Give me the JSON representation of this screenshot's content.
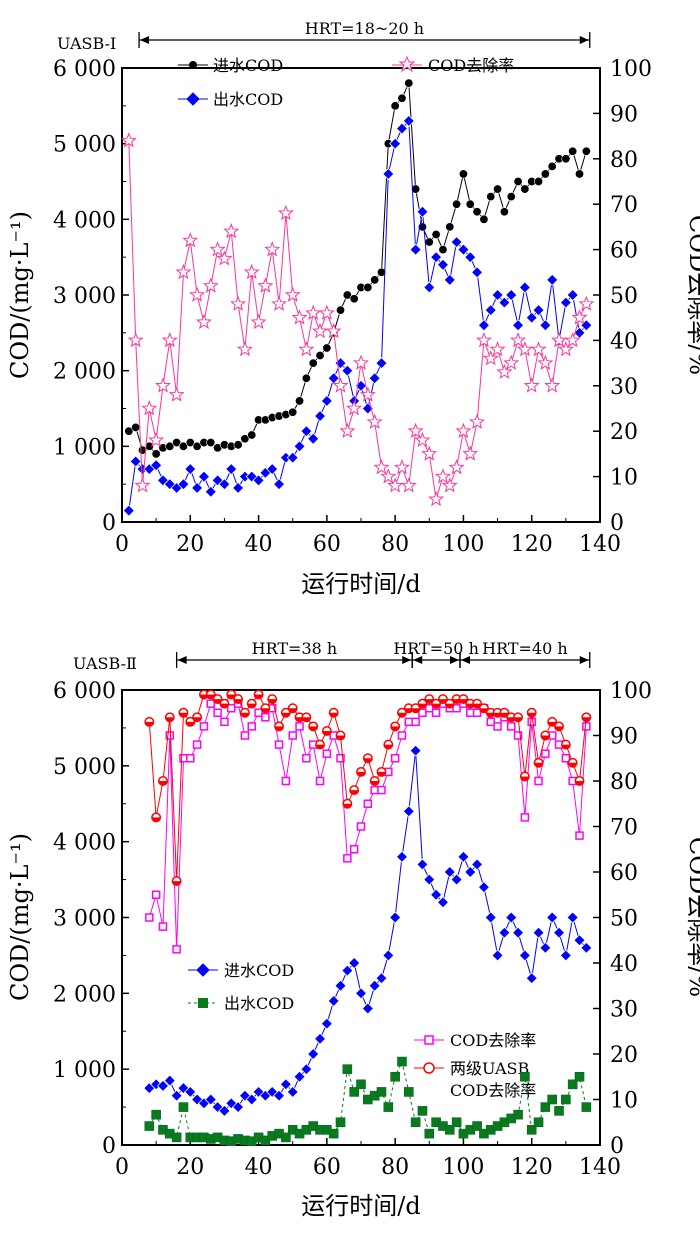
{
  "chart_data": [
    {
      "type": "line",
      "reactor_label": "UASB-Ⅰ",
      "hrt_segments": [
        {
          "label": "HRT=18~20 h",
          "x_start": 5,
          "x_end": 137
        }
      ],
      "xlabel": "运行时间/d",
      "ylabel_left": "COD/(mg·L⁻¹)",
      "ylabel_right": "COD去除率/%",
      "xlim": [
        0,
        140
      ],
      "ylim_left": [
        0,
        6000
      ],
      "ylim_right": [
        0,
        100
      ],
      "x_ticks": [
        "0",
        "20",
        "40",
        "60",
        "80",
        "100",
        "120",
        "140"
      ],
      "y_left_ticks": [
        "0",
        "1 000",
        "2 000",
        "3 000",
        "4 000",
        "5 000",
        "6 000"
      ],
      "y_right_ticks": [
        "0",
        "10",
        "20",
        "30",
        "40",
        "50",
        "60",
        "70",
        "80",
        "90",
        "100"
      ],
      "legend": [
        "进水COD",
        "出水COD",
        "COD去除率"
      ],
      "series": [
        {
          "name": "进水COD",
          "axis": "left",
          "color": "#000000",
          "marker": "circle",
          "x": [
            2,
            4,
            6,
            8,
            10,
            12,
            14,
            16,
            18,
            20,
            22,
            24,
            26,
            28,
            30,
            32,
            34,
            36,
            38,
            40,
            42,
            44,
            46,
            48,
            50,
            52,
            54,
            56,
            58,
            60,
            62,
            64,
            66,
            68,
            70,
            72,
            74,
            76,
            78,
            80,
            82,
            84,
            86,
            88,
            90,
            92,
            94,
            96,
            98,
            100,
            102,
            104,
            106,
            108,
            110,
            112,
            114,
            116,
            118,
            120,
            122,
            124,
            126,
            128,
            130,
            132,
            134,
            136
          ],
          "values": [
            1200,
            1250,
            950,
            1000,
            900,
            980,
            1000,
            1050,
            1000,
            1050,
            1000,
            1050,
            1050,
            980,
            1020,
            1000,
            1020,
            1100,
            1150,
            1350,
            1350,
            1380,
            1400,
            1420,
            1450,
            1600,
            1900,
            2100,
            2200,
            2300,
            2500,
            2800,
            3000,
            2950,
            3100,
            3100,
            3200,
            3300,
            5000,
            5500,
            5600,
            5800,
            4400,
            3900,
            3700,
            3800,
            3600,
            3900,
            4200,
            4600,
            4200,
            4100,
            4000,
            4300,
            4400,
            4100,
            4300,
            4500,
            4400,
            4500,
            4500,
            4600,
            4700,
            4800,
            4800,
            4900,
            4600,
            4900
          ]
        },
        {
          "name": "出水COD",
          "axis": "left",
          "color": "#0000FF",
          "marker": "diamond",
          "x": [
            2,
            4,
            6,
            8,
            10,
            12,
            14,
            16,
            18,
            20,
            22,
            24,
            26,
            28,
            30,
            32,
            34,
            36,
            38,
            40,
            42,
            44,
            46,
            48,
            50,
            52,
            54,
            56,
            58,
            60,
            62,
            64,
            66,
            68,
            70,
            72,
            74,
            76,
            78,
            80,
            82,
            84,
            86,
            88,
            90,
            92,
            94,
            96,
            98,
            100,
            102,
            104,
            106,
            108,
            110,
            112,
            114,
            116,
            118,
            120,
            122,
            124,
            126,
            128,
            130,
            132,
            134,
            136
          ],
          "values": [
            150,
            800,
            700,
            700,
            750,
            550,
            500,
            450,
            500,
            700,
            450,
            600,
            400,
            550,
            500,
            700,
            450,
            600,
            600,
            550,
            650,
            700,
            500,
            850,
            850,
            1000,
            1200,
            1100,
            1400,
            1600,
            1900,
            2100,
            2000,
            1600,
            1800,
            1500,
            1900,
            2100,
            4600,
            5000,
            5200,
            5300,
            3600,
            4100,
            3100,
            3500,
            3400,
            3200,
            3700,
            3600,
            3500,
            3300,
            2600,
            2800,
            3000,
            2900,
            3000,
            2600,
            3100,
            2700,
            2800,
            2600,
            3200,
            2400,
            2900,
            3000,
            2500,
            2600
          ]
        },
        {
          "name": "COD去除率",
          "axis": "right",
          "color": "#FF3399",
          "marker": "star",
          "x": [
            2,
            4,
            6,
            8,
            10,
            12,
            14,
            16,
            18,
            20,
            22,
            24,
            26,
            28,
            30,
            32,
            34,
            36,
            38,
            40,
            42,
            44,
            46,
            48,
            50,
            52,
            54,
            56,
            58,
            60,
            62,
            64,
            66,
            68,
            70,
            72,
            74,
            76,
            78,
            80,
            82,
            84,
            86,
            88,
            90,
            92,
            94,
            96,
            98,
            100,
            102,
            104,
            106,
            108,
            110,
            112,
            114,
            116,
            118,
            120,
            122,
            124,
            126,
            128,
            130,
            132,
            134,
            136
          ],
          "values": [
            84,
            40,
            8,
            25,
            18,
            30,
            40,
            28,
            55,
            62,
            50,
            44,
            52,
            60,
            58,
            64,
            48,
            38,
            55,
            44,
            52,
            60,
            48,
            68,
            50,
            45,
            38,
            46,
            42,
            46,
            42,
            30,
            20,
            25,
            35,
            28,
            22,
            12,
            10,
            8,
            12,
            8,
            20,
            18,
            15,
            5,
            10,
            8,
            12,
            20,
            15,
            22,
            40,
            36,
            38,
            33,
            35,
            40,
            38,
            30,
            38,
            35,
            30,
            40,
            38,
            40,
            45,
            48
          ]
        }
      ]
    },
    {
      "type": "line",
      "reactor_label": "UASB-Ⅱ",
      "hrt_segments": [
        {
          "label": "HRT=38 h",
          "x_start": 16,
          "x_end": 85
        },
        {
          "label": "HRT=50 h",
          "x_start": 85,
          "x_end": 99
        },
        {
          "label": "HRT=40 h",
          "x_start": 99,
          "x_end": 137
        }
      ],
      "xlabel": "运行时间/d",
      "ylabel_left": "COD/(mg·L⁻¹)",
      "ylabel_right": "COD去除率/%",
      "xlim": [
        0,
        140
      ],
      "ylim_left": [
        0,
        6000
      ],
      "ylim_right": [
        0,
        100
      ],
      "x_ticks": [
        "0",
        "20",
        "40",
        "60",
        "80",
        "100",
        "120",
        "140"
      ],
      "y_left_ticks": [
        "0",
        "1 000",
        "2 000",
        "3 000",
        "4 000",
        "5 000",
        "6 000"
      ],
      "y_right_ticks": [
        "0",
        "10",
        "20",
        "30",
        "40",
        "50",
        "60",
        "70",
        "80",
        "90",
        "100"
      ],
      "legend": [
        "进水COD",
        "出水COD",
        "COD去除率",
        "两级UASB COD去除率"
      ],
      "series": [
        {
          "name": "进水COD",
          "axis": "left",
          "color": "#0000FF",
          "marker": "diamond",
          "x": [
            8,
            10,
            12,
            14,
            16,
            18,
            20,
            22,
            24,
            26,
            28,
            30,
            32,
            34,
            36,
            38,
            40,
            42,
            44,
            46,
            48,
            50,
            52,
            54,
            56,
            58,
            60,
            62,
            64,
            66,
            68,
            70,
            72,
            74,
            76,
            78,
            80,
            82,
            84,
            86,
            88,
            90,
            92,
            94,
            96,
            98,
            100,
            102,
            104,
            106,
            108,
            110,
            112,
            114,
            116,
            118,
            120,
            122,
            124,
            126,
            128,
            130,
            132,
            134,
            136
          ],
          "values": [
            750,
            800,
            780,
            850,
            650,
            750,
            700,
            600,
            550,
            600,
            500,
            450,
            550,
            500,
            650,
            600,
            700,
            650,
            700,
            650,
            800,
            700,
            900,
            1000,
            1200,
            1400,
            1600,
            1900,
            2100,
            2300,
            2400,
            2000,
            1800,
            2100,
            2200,
            2500,
            3000,
            3800,
            4400,
            5200,
            3700,
            3500,
            3300,
            3200,
            3600,
            3500,
            3800,
            3600,
            3700,
            3400,
            3000,
            2500,
            2800,
            3000,
            2800,
            2500,
            2200,
            2800,
            2600,
            3000,
            2800,
            2500,
            3000,
            2700,
            2600
          ]
        },
        {
          "name": "出水COD",
          "axis": "left",
          "color": "#0A7A1A",
          "marker": "square",
          "x": [
            8,
            10,
            12,
            14,
            16,
            18,
            20,
            22,
            24,
            26,
            28,
            30,
            32,
            34,
            36,
            38,
            40,
            42,
            44,
            46,
            48,
            50,
            52,
            54,
            56,
            58,
            60,
            62,
            64,
            66,
            68,
            70,
            72,
            74,
            76,
            78,
            80,
            82,
            84,
            86,
            88,
            90,
            92,
            94,
            96,
            98,
            100,
            102,
            104,
            106,
            108,
            110,
            112,
            114,
            116,
            118,
            120,
            122,
            124,
            126,
            128,
            130,
            132,
            134,
            136
          ],
          "values": [
            250,
            400,
            200,
            150,
            100,
            500,
            100,
            100,
            100,
            80,
            100,
            60,
            50,
            80,
            60,
            50,
            100,
            60,
            120,
            150,
            100,
            200,
            150,
            200,
            250,
            200,
            200,
            150,
            300,
            1000,
            700,
            800,
            600,
            650,
            700,
            500,
            900,
            1100,
            700,
            300,
            450,
            150,
            300,
            250,
            200,
            300,
            150,
            200,
            250,
            150,
            200,
            250,
            300,
            350,
            400,
            900,
            200,
            300,
            500,
            600,
            450,
            600,
            800,
            900,
            500
          ]
        },
        {
          "name": "COD去除率",
          "axis": "right",
          "color": "#FF00FF",
          "marker": "square-open",
          "x": [
            8,
            10,
            12,
            14,
            16,
            18,
            20,
            22,
            24,
            26,
            28,
            30,
            32,
            34,
            36,
            38,
            40,
            42,
            44,
            46,
            48,
            50,
            52,
            54,
            56,
            58,
            60,
            62,
            64,
            66,
            68,
            70,
            72,
            74,
            76,
            78,
            80,
            82,
            84,
            86,
            88,
            90,
            92,
            94,
            96,
            98,
            100,
            102,
            104,
            106,
            108,
            110,
            112,
            114,
            116,
            118,
            120,
            122,
            124,
            126,
            128,
            130,
            132,
            134,
            136
          ],
          "values": [
            50,
            55,
            48,
            90,
            43,
            85,
            85,
            88,
            92,
            97,
            95,
            93,
            96,
            97,
            90,
            92,
            95,
            94,
            96,
            88,
            80,
            90,
            92,
            85,
            88,
            80,
            86,
            90,
            85,
            63,
            65,
            70,
            75,
            78,
            78,
            82,
            85,
            90,
            93,
            93,
            95,
            96,
            95,
            97,
            96,
            96,
            97,
            95,
            95,
            96,
            93,
            92,
            94,
            92,
            90,
            72,
            93,
            80,
            86,
            90,
            88,
            85,
            80,
            68,
            92
          ]
        },
        {
          "name": "两级UASB COD去除率",
          "axis": "right",
          "color": "#FF0000",
          "marker": "circle-half",
          "x": [
            8,
            10,
            12,
            14,
            16,
            18,
            20,
            22,
            24,
            26,
            28,
            30,
            32,
            34,
            36,
            38,
            40,
            42,
            44,
            46,
            48,
            50,
            52,
            54,
            56,
            58,
            60,
            62,
            64,
            66,
            68,
            70,
            72,
            74,
            76,
            78,
            80,
            82,
            84,
            86,
            88,
            90,
            92,
            94,
            96,
            98,
            100,
            102,
            104,
            106,
            108,
            110,
            112,
            114,
            116,
            118,
            120,
            122,
            124,
            126,
            128,
            130,
            132,
            134,
            136
          ],
          "values": [
            93,
            72,
            80,
            94,
            58,
            95,
            93,
            94,
            99,
            99,
            98,
            97,
            99,
            98,
            95,
            97,
            99,
            96,
            98,
            92,
            95,
            96,
            94,
            94,
            92,
            88,
            91,
            95,
            90,
            75,
            78,
            82,
            85,
            80,
            82,
            88,
            92,
            95,
            96,
            96,
            97,
            98,
            97,
            98,
            97,
            98,
            98,
            97,
            97,
            96,
            95,
            95,
            95,
            94,
            94,
            81,
            95,
            84,
            90,
            93,
            92,
            88,
            84,
            80,
            94
          ]
        }
      ]
    }
  ]
}
